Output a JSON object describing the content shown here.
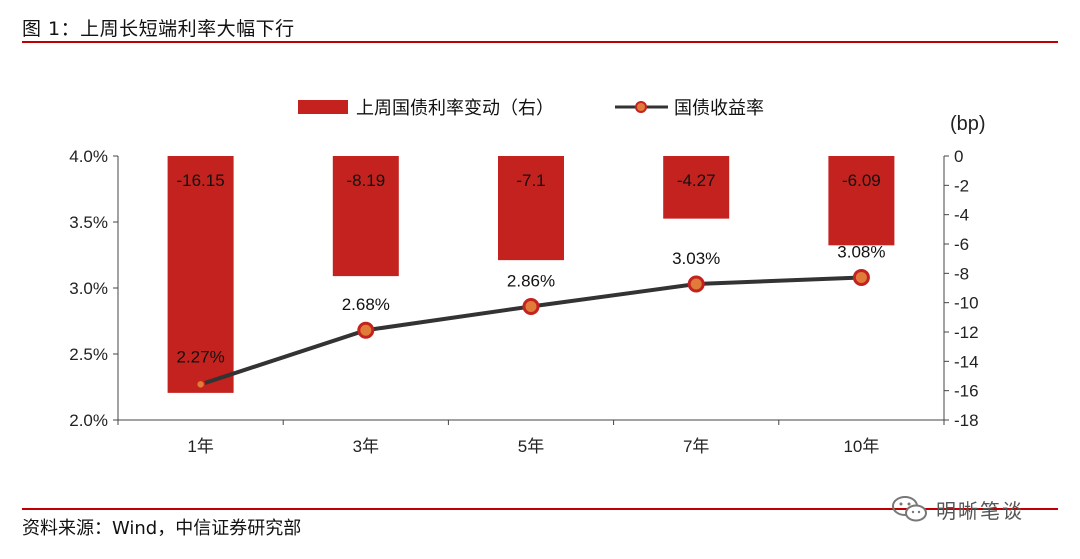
{
  "header": {
    "title": "图 1：上周长短端利率大幅下行"
  },
  "footer": {
    "source": "资料来源：Wind，中信证券研究部",
    "watermark": "明晰笔谈"
  },
  "colors": {
    "bar": "#c3221f",
    "line": "#333333",
    "marker_fill": "#e07b39",
    "marker_edge": "#c3221f",
    "rule": "#c00000"
  },
  "chart_data": {
    "type": "bar+line",
    "categories": [
      "1年",
      "3年",
      "5年",
      "7年",
      "10年"
    ],
    "series": [
      {
        "name": "上周国债利率变动（右）",
        "type": "bar",
        "axis": "right",
        "values": [
          -16.15,
          -8.19,
          -7.1,
          -4.27,
          -6.09
        ],
        "labels": [
          "-16.15",
          "-8.19",
          "-7.1",
          "-4.27",
          "-6.09"
        ]
      },
      {
        "name": "国债收益率",
        "type": "line",
        "axis": "left",
        "values": [
          2.27,
          2.68,
          2.86,
          3.03,
          3.08
        ],
        "labels": [
          "2.27%",
          "2.68%",
          "2.86%",
          "3.03%",
          "3.08%"
        ]
      }
    ],
    "y_left": {
      "min": 2.0,
      "max": 4.0,
      "ticks": [
        "2.0%",
        "2.5%",
        "3.0%",
        "3.5%",
        "4.0%"
      ],
      "tick_values": [
        2.0,
        2.5,
        3.0,
        3.5,
        4.0
      ]
    },
    "y_right": {
      "min": -18,
      "max": 0,
      "unit": "(bp)",
      "ticks": [
        "0",
        "-2",
        "-4",
        "-6",
        "-8",
        "-10",
        "-12",
        "-14",
        "-16",
        "-18"
      ],
      "tick_values": [
        0,
        -2,
        -4,
        -6,
        -8,
        -10,
        -12,
        -14,
        -16,
        -18
      ]
    },
    "legend": "top"
  }
}
